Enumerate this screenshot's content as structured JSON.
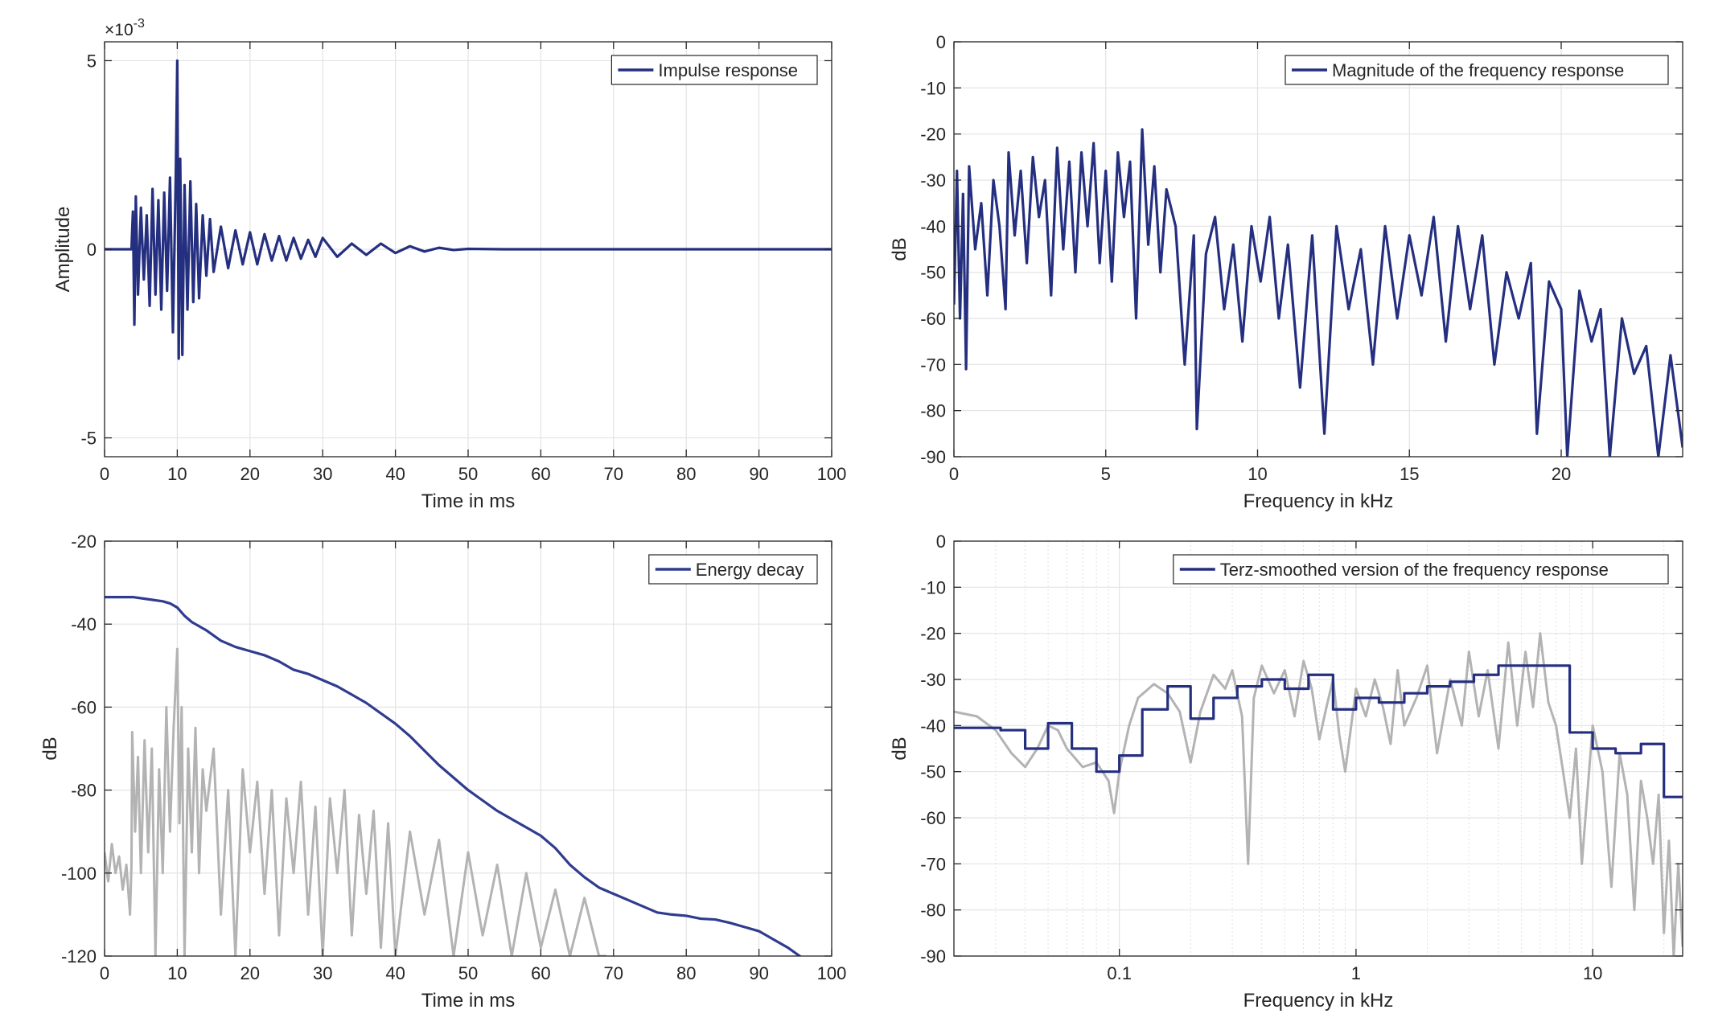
{
  "chart_data": [
    {
      "id": "impulse",
      "type": "line",
      "xlabel": "Time in ms",
      "ylabel": "Amplitude",
      "exponent_label": "×10",
      "exponent_power": "-3",
      "xlim": [
        0,
        100
      ],
      "ylim": [
        -5.5,
        5.5
      ],
      "xticks": [
        0,
        10,
        20,
        30,
        40,
        50,
        60,
        70,
        80,
        90,
        100
      ],
      "xtick_labels": [
        "0",
        "10",
        "20",
        "30",
        "40",
        "50",
        "60",
        "70",
        "80",
        "90",
        "100"
      ],
      "yticks": [
        5,
        0,
        -5
      ],
      "ytick_labels": [
        "5",
        "0",
        "-5"
      ],
      "grid": true,
      "legend": {
        "label": "Impulse response",
        "placement": "top-right"
      },
      "series": [
        {
          "name": "Impulse response",
          "color": "#252f80",
          "x": [
            0,
            3.7,
            3.9,
            4.1,
            4.3,
            4.6,
            5.0,
            5.4,
            5.8,
            6.2,
            6.6,
            7.0,
            7.4,
            7.8,
            8.2,
            8.6,
            9.0,
            9.4,
            9.8,
            10.0,
            10.2,
            10.4,
            10.7,
            11.0,
            11.4,
            11.8,
            12.2,
            12.6,
            13.0,
            13.5,
            14.0,
            14.5,
            15.0,
            16,
            17,
            18,
            19,
            20,
            21,
            22,
            23,
            24,
            25,
            26,
            27,
            28,
            29,
            30,
            32,
            34,
            36,
            38,
            40,
            42,
            44,
            46,
            48,
            50,
            55,
            60,
            70,
            80,
            90,
            100
          ],
          "y": [
            0,
            0,
            1.0,
            -2.0,
            1.4,
            -1.2,
            1.1,
            -0.8,
            0.9,
            -1.5,
            1.6,
            -1.2,
            1.3,
            -1.6,
            1.5,
            -1.1,
            1.9,
            -2.2,
            2.0,
            5.0,
            -2.9,
            2.4,
            -2.8,
            1.7,
            -1.6,
            1.8,
            -1.4,
            1.2,
            -1.3,
            0.9,
            -0.7,
            0.8,
            -0.6,
            0.6,
            -0.5,
            0.5,
            -0.4,
            0.45,
            -0.4,
            0.4,
            -0.3,
            0.35,
            -0.3,
            0.3,
            -0.25,
            0.25,
            -0.2,
            0.3,
            -0.2,
            0.15,
            -0.15,
            0.15,
            -0.1,
            0.08,
            -0.06,
            0.04,
            -0.02,
            0.01,
            0,
            0,
            0,
            0,
            0,
            0
          ]
        }
      ]
    },
    {
      "id": "magnitude",
      "type": "line",
      "xlabel": "Frequency in kHz",
      "ylabel": "dB",
      "xlim": [
        0,
        24
      ],
      "ylim": [
        -90,
        0
      ],
      "xticks": [
        0,
        5,
        10,
        15,
        20
      ],
      "xtick_labels": [
        "0",
        "5",
        "10",
        "15",
        "20"
      ],
      "yticks": [
        0,
        -10,
        -20,
        -30,
        -40,
        -50,
        -60,
        -70,
        -80,
        -90
      ],
      "ytick_labels": [
        "0",
        "-10",
        "-20",
        "-30",
        "-40",
        "-50",
        "-60",
        "-70",
        "-80",
        "-90"
      ],
      "grid": true,
      "legend": {
        "label": "Magnitude of the frequency response",
        "placement": "top-right"
      },
      "series": [
        {
          "name": "Magnitude of the frequency response",
          "color": "#252f80",
          "x": [
            0,
            0.1,
            0.2,
            0.3,
            0.4,
            0.5,
            0.7,
            0.9,
            1.1,
            1.3,
            1.5,
            1.7,
            1.8,
            2.0,
            2.2,
            2.4,
            2.6,
            2.8,
            3.0,
            3.2,
            3.4,
            3.6,
            3.8,
            4.0,
            4.2,
            4.4,
            4.6,
            4.8,
            5.0,
            5.2,
            5.4,
            5.6,
            5.8,
            6.0,
            6.2,
            6.4,
            6.6,
            6.8,
            7.0,
            7.3,
            7.6,
            7.9,
            8.0,
            8.3,
            8.6,
            8.9,
            9.2,
            9.5,
            9.8,
            10.1,
            10.4,
            10.7,
            11.0,
            11.4,
            11.8,
            12.2,
            12.6,
            13.0,
            13.4,
            13.8,
            14.2,
            14.6,
            15.0,
            15.4,
            15.8,
            16.2,
            16.6,
            17.0,
            17.4,
            17.8,
            18.2,
            18.6,
            19.0,
            19.2,
            19.6,
            20.0,
            20.2,
            20.6,
            21.0,
            21.3,
            21.6,
            22.0,
            22.4,
            22.8,
            23.2,
            23.6,
            24.0
          ],
          "y": [
            -57,
            -28,
            -60,
            -33,
            -71,
            -27,
            -45,
            -35,
            -55,
            -30,
            -40,
            -58,
            -24,
            -42,
            -28,
            -48,
            -25,
            -38,
            -30,
            -55,
            -23,
            -45,
            -26,
            -50,
            -24,
            -40,
            -22,
            -48,
            -28,
            -52,
            -24,
            -38,
            -26,
            -60,
            -19,
            -44,
            -27,
            -50,
            -32,
            -40,
            -70,
            -42,
            -84,
            -46,
            -38,
            -58,
            -44,
            -65,
            -40,
            -52,
            -38,
            -60,
            -44,
            -75,
            -42,
            -85,
            -40,
            -58,
            -45,
            -70,
            -40,
            -60,
            -42,
            -55,
            -38,
            -65,
            -40,
            -58,
            -42,
            -70,
            -50,
            -60,
            -48,
            -85,
            -52,
            -58,
            -90,
            -54,
            -65,
            -58,
            -90,
            -60,
            -72,
            -66,
            -90,
            -68,
            -88
          ]
        }
      ]
    },
    {
      "id": "energy",
      "type": "line",
      "xlabel": "Time in ms",
      "ylabel": "dB",
      "xlim": [
        0,
        100
      ],
      "ylim": [
        -120,
        -20
      ],
      "xticks": [
        0,
        10,
        20,
        30,
        40,
        50,
        60,
        70,
        80,
        90,
        100
      ],
      "xtick_labels": [
        "0",
        "10",
        "20",
        "30",
        "40",
        "50",
        "60",
        "70",
        "80",
        "90",
        "100"
      ],
      "yticks": [
        -20,
        -40,
        -60,
        -80,
        -100,
        -120
      ],
      "ytick_labels": [
        "-20",
        "-40",
        "-60",
        "-80",
        "-100",
        "-120"
      ],
      "grid": true,
      "legend": {
        "label": "Energy decay",
        "placement": "top-right"
      },
      "series": [
        {
          "color": "#b3b3b3",
          "x": [
            0,
            0.5,
            1.0,
            1.5,
            2.0,
            2.5,
            3.0,
            3.5,
            3.7,
            3.8,
            4.2,
            4.6,
            5.0,
            5.5,
            6.0,
            6.5,
            7.0,
            7.5,
            8.0,
            8.5,
            9.0,
            9.5,
            10.0,
            10.3,
            10.6,
            11.0,
            11.5,
            12.0,
            12.5,
            13.0,
            13.5,
            14,
            15,
            16,
            17,
            18,
            19,
            20,
            21,
            22,
            23,
            24,
            25,
            26,
            27,
            28,
            29,
            30,
            31,
            32,
            33,
            34,
            35,
            36,
            37,
            38,
            39,
            40,
            42,
            44,
            46,
            48,
            50,
            52,
            54,
            56,
            58,
            60,
            62,
            64,
            66,
            68,
            69
          ],
          "y": [
            -95,
            -102,
            -93,
            -100,
            -96,
            -104,
            -98,
            -110,
            -98,
            -66,
            -90,
            -72,
            -100,
            -68,
            -95,
            -70,
            -120,
            -75,
            -100,
            -60,
            -90,
            -65,
            -46,
            -88,
            -60,
            -120,
            -70,
            -95,
            -65,
            -100,
            -75,
            -85,
            -70,
            -110,
            -80,
            -120,
            -75,
            -95,
            -78,
            -105,
            -80,
            -115,
            -82,
            -100,
            -78,
            -110,
            -84,
            -120,
            -82,
            -100,
            -80,
            -115,
            -86,
            -105,
            -85,
            -118,
            -88,
            -120,
            -90,
            -110,
            -92,
            -120,
            -95,
            -115,
            -98,
            -120,
            -100,
            -118,
            -104,
            -120,
            -106,
            -120,
            -120
          ]
        },
        {
          "name": "Energy decay",
          "color": "#2f3c8f",
          "x": [
            0,
            2,
            4,
            6,
            8,
            9,
            10,
            11,
            12,
            14,
            16,
            18,
            20,
            22,
            24,
            26,
            28,
            30,
            32,
            34,
            36,
            38,
            40,
            42,
            44,
            46,
            48,
            50,
            52,
            54,
            56,
            58,
            60,
            62,
            64,
            66,
            68,
            70,
            72,
            74,
            76,
            78,
            80,
            82,
            84,
            86,
            88,
            90,
            92,
            94,
            96
          ],
          "y": [
            -33.5,
            -33.5,
            -33.5,
            -34,
            -34.5,
            -35,
            -36,
            -38,
            -39.5,
            -41.5,
            -44,
            -45.5,
            -46.5,
            -47.5,
            -49,
            -51,
            -52,
            -53.5,
            -55,
            -57,
            -59,
            -61.5,
            -64,
            -67,
            -70.5,
            -74,
            -77,
            -80,
            -82.5,
            -85,
            -87,
            -89,
            -91,
            -94,
            -98,
            -101,
            -103.5,
            -105,
            -106.5,
            -108,
            -109.5,
            -110,
            -110.3,
            -111,
            -111.2,
            -112,
            -113,
            -114,
            -116,
            -118,
            -120.5
          ]
        }
      ]
    },
    {
      "id": "terz",
      "type": "line",
      "xscale": "log",
      "xlabel": "Frequency in kHz",
      "ylabel": "dB",
      "xlim": [
        0.02,
        24
      ],
      "ylim": [
        -90,
        0
      ],
      "xticks": [
        0.1,
        1,
        10
      ],
      "xtick_labels": [
        "0.1",
        "1",
        "10"
      ],
      "yticks": [
        0,
        -10,
        -20,
        -30,
        -40,
        -50,
        -60,
        -70,
        -80,
        -90
      ],
      "ytick_labels": [
        "0",
        "-10",
        "-20",
        "-30",
        "-40",
        "-50",
        "-60",
        "-70",
        "-80",
        "-90"
      ],
      "grid": true,
      "legend": {
        "label": "Terz-smoothed version of the frequency response",
        "placement": "top-right"
      },
      "series": [
        {
          "color": "#b3b3b3",
          "x": [
            0.02,
            0.025,
            0.03,
            0.035,
            0.04,
            0.045,
            0.05,
            0.055,
            0.06,
            0.07,
            0.08,
            0.09,
            0.095,
            0.1,
            0.11,
            0.12,
            0.14,
            0.16,
            0.18,
            0.2,
            0.22,
            0.25,
            0.28,
            0.3,
            0.33,
            0.35,
            0.37,
            0.4,
            0.45,
            0.5,
            0.55,
            0.6,
            0.65,
            0.7,
            0.75,
            0.8,
            0.85,
            0.9,
            1.0,
            1.1,
            1.2,
            1.3,
            1.4,
            1.5,
            1.6,
            1.8,
            2.0,
            2.2,
            2.5,
            2.8,
            3.0,
            3.3,
            3.6,
            4.0,
            4.4,
            4.8,
            5.2,
            5.6,
            6.0,
            6.5,
            7.0,
            7.5,
            8.0,
            8.5,
            9.0,
            10,
            11,
            12,
            13,
            14,
            15,
            16,
            17,
            18,
            19,
            20,
            21,
            22,
            23,
            24
          ],
          "y": [
            -37,
            -38,
            -41,
            -46,
            -49,
            -45,
            -40,
            -41,
            -45,
            -49,
            -48,
            -52,
            -59,
            -50,
            -40,
            -34,
            -31,
            -33,
            -37,
            -48,
            -37,
            -29,
            -32,
            -28,
            -38,
            -70,
            -34,
            -27,
            -33,
            -28,
            -38,
            -26,
            -32,
            -43,
            -36,
            -30,
            -42,
            -50,
            -32,
            -38,
            -30,
            -36,
            -44,
            -28,
            -40,
            -34,
            -27,
            -46,
            -30,
            -40,
            -24,
            -38,
            -28,
            -45,
            -22,
            -40,
            -24,
            -36,
            -20,
            -35,
            -40,
            -50,
            -60,
            -45,
            -70,
            -40,
            -50,
            -75,
            -46,
            -55,
            -80,
            -52,
            -60,
            -70,
            -55,
            -85,
            -65,
            -90,
            -70,
            -88
          ]
        },
        {
          "name": "Terz-smoothed version of the frequency response",
          "color": "#252f80",
          "x": [
            0.02,
            0.0315,
            0.0315,
            0.04,
            0.04,
            0.05,
            0.05,
            0.063,
            0.063,
            0.08,
            0.08,
            0.1,
            0.1,
            0.125,
            0.125,
            0.16,
            0.16,
            0.2,
            0.2,
            0.25,
            0.25,
            0.315,
            0.315,
            0.4,
            0.4,
            0.5,
            0.5,
            0.63,
            0.63,
            0.8,
            0.8,
            1.0,
            1.0,
            1.25,
            1.25,
            1.6,
            1.6,
            2.0,
            2.0,
            2.5,
            2.5,
            3.15,
            3.15,
            4.0,
            4.0,
            5.0,
            5.0,
            6.3,
            6.3,
            8.0,
            8.0,
            10,
            10,
            12.5,
            12.5,
            16,
            16,
            20,
            20,
            24
          ],
          "y": [
            -40.5,
            -40.5,
            -41,
            -41,
            -45,
            -45,
            -39.5,
            -39.5,
            -45,
            -45,
            -50,
            -50,
            -46.5,
            -46.5,
            -36.5,
            -36.5,
            -31.5,
            -31.5,
            -38.5,
            -38.5,
            -34,
            -34,
            -31.5,
            -31.5,
            -30,
            -30,
            -32,
            -32,
            -29,
            -29,
            -36.5,
            -36.5,
            -34,
            -34,
            -35,
            -35,
            -33,
            -33,
            -31.5,
            -31.5,
            -30.5,
            -30.5,
            -29,
            -29,
            -27,
            -27,
            -27,
            -27,
            -27,
            -27,
            -41.5,
            -41.5,
            -45,
            -45,
            -46,
            -46,
            -44,
            -44,
            -55.5,
            -55.5
          ]
        }
      ]
    }
  ]
}
